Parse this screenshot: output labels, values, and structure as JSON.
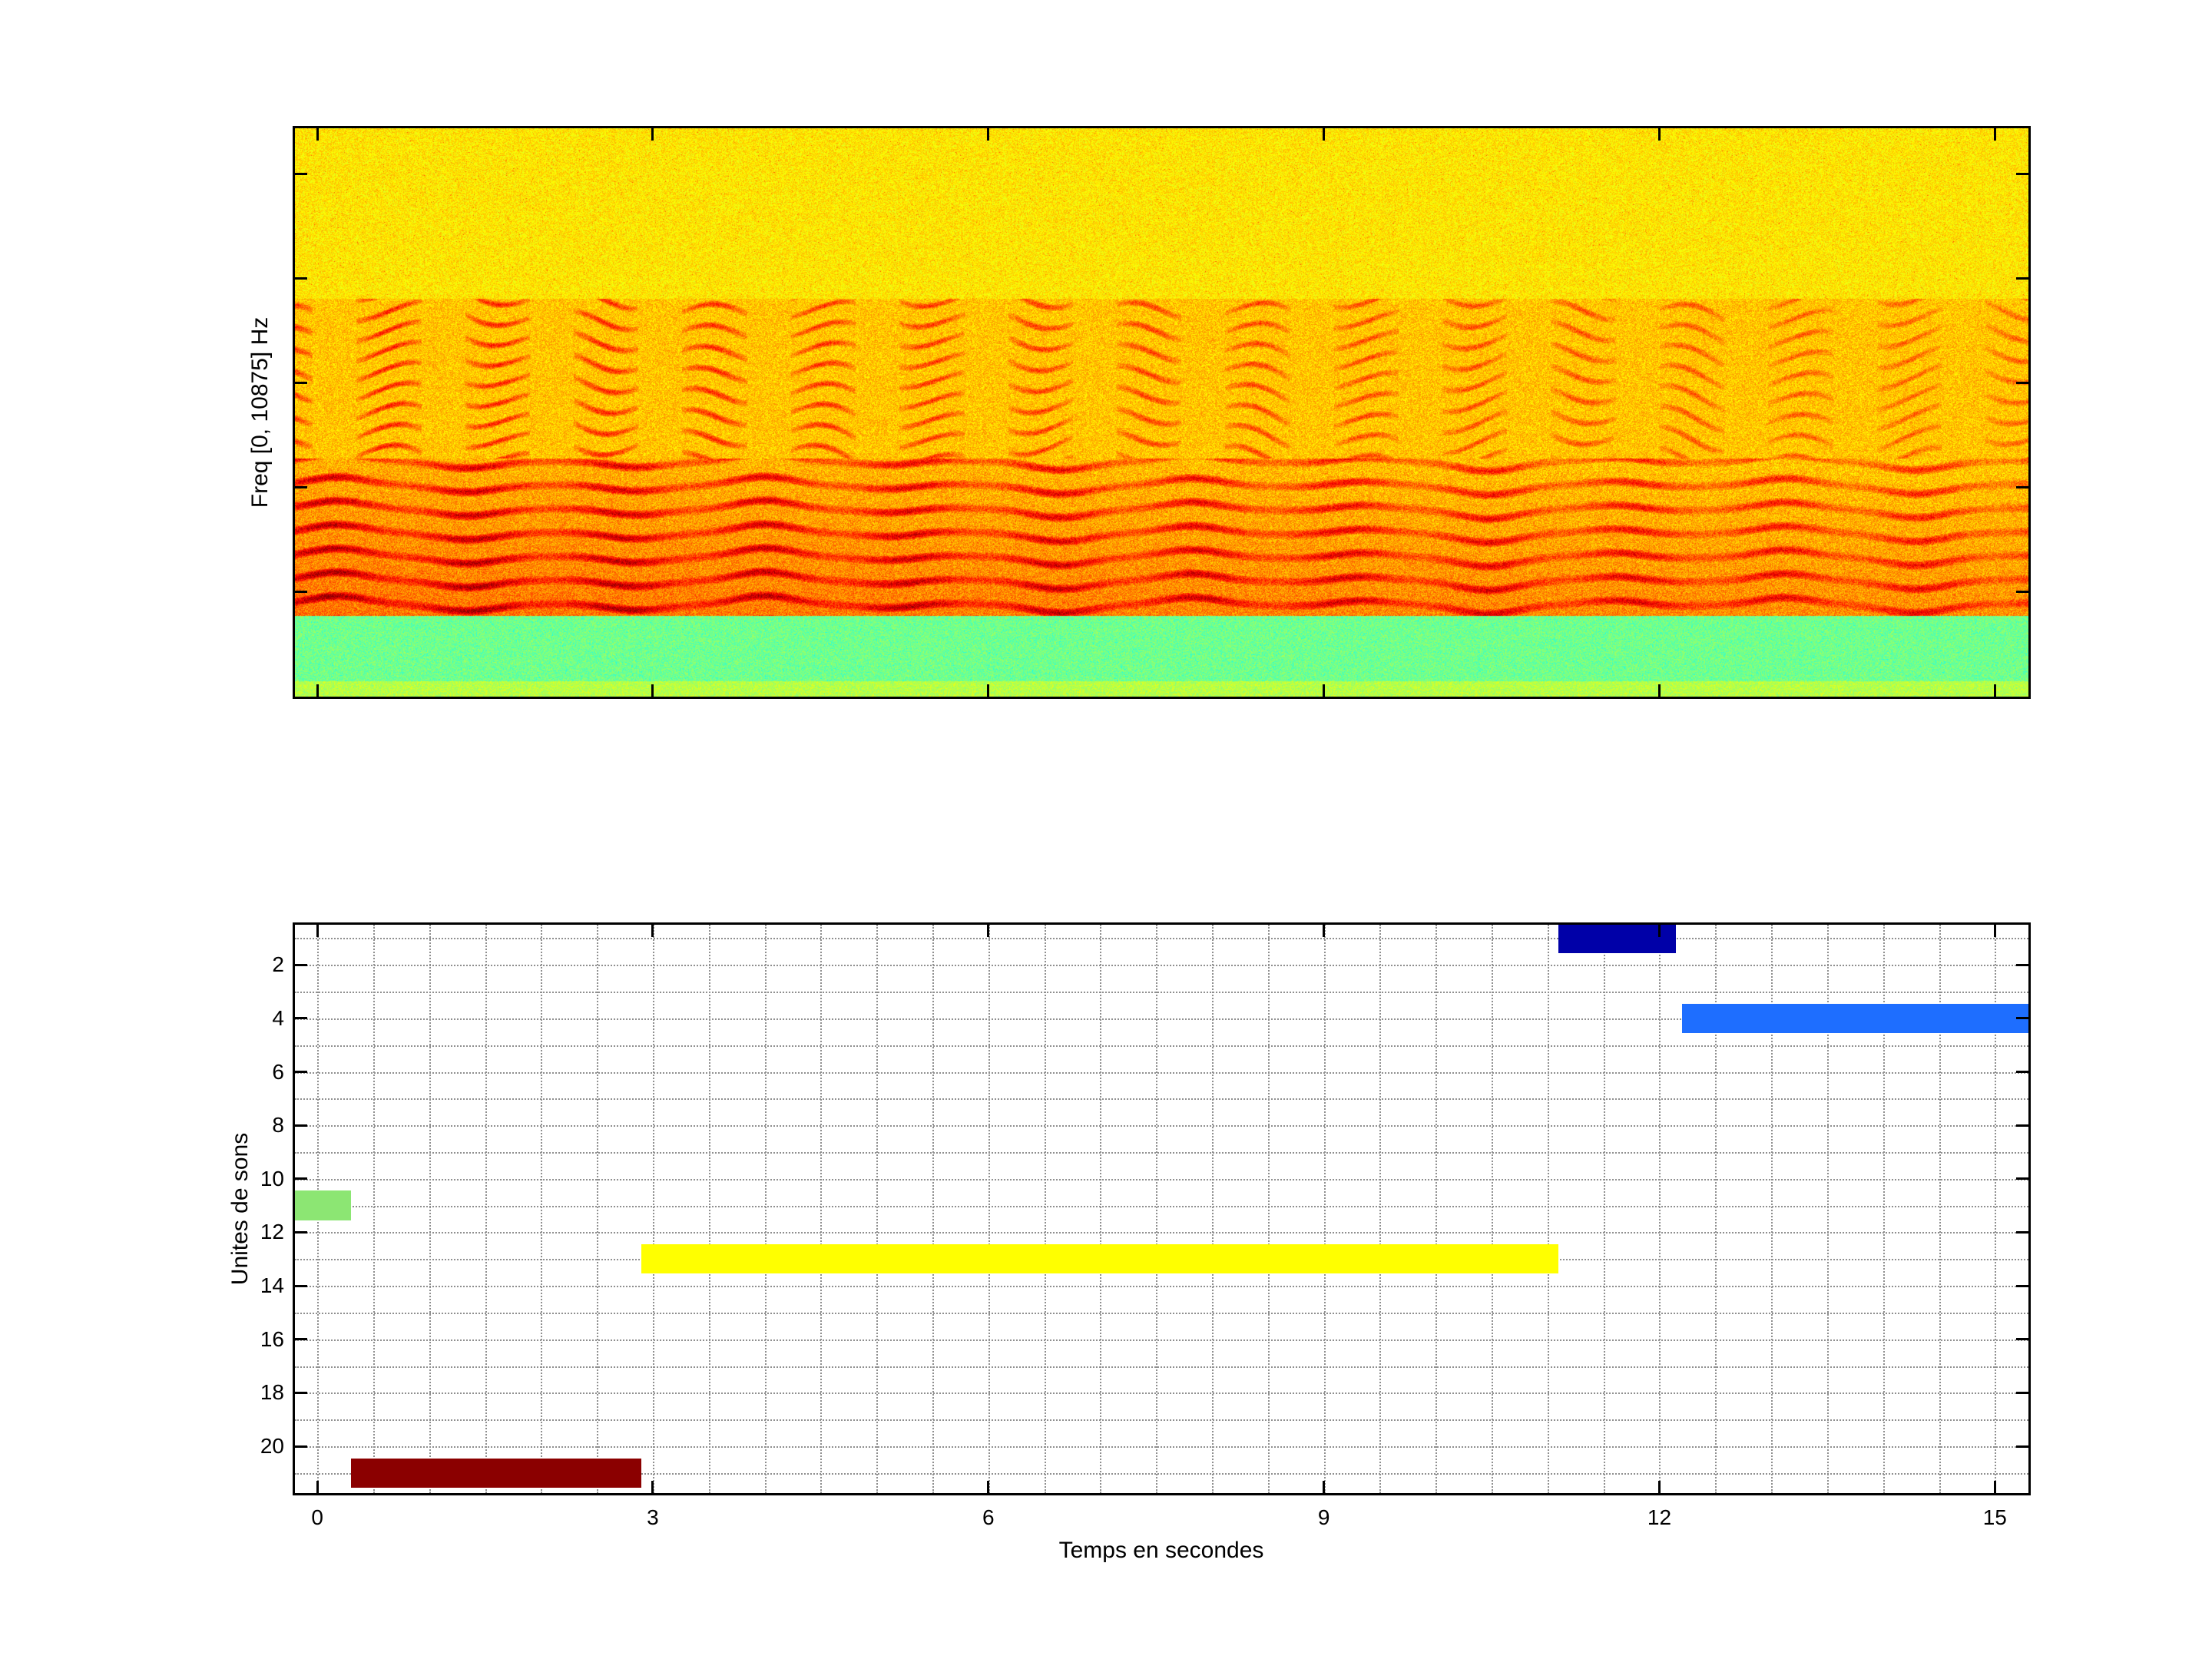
{
  "figure": {
    "background": "#ffffff",
    "axes_border_color": "#000000"
  },
  "chart_data": [
    {
      "type": "heatmap",
      "name": "spectrogram",
      "title": "",
      "xlabel": "",
      "ylabel": "Freq [0, 10875] Hz",
      "colormap": "jet",
      "freq_range_hz": [
        0,
        10875
      ],
      "time_range_s": [
        -0.2,
        15.3
      ],
      "xticks_s": [
        0,
        3,
        6,
        9,
        12,
        15
      ],
      "ytick_freqs_hz": [
        2000,
        4000,
        6000,
        8000,
        10000
      ],
      "regions": [
        {
          "name": "upper-noise",
          "y_from": 0.0,
          "y_to": 0.3,
          "base": 0.648,
          "noise": 0.055
        },
        {
          "name": "mid-harmonics",
          "y_from": 0.3,
          "y_to": 0.58,
          "base": 0.682,
          "noise": 0.062
        },
        {
          "name": "low-harmonics",
          "y_from": 0.58,
          "y_to": 0.858,
          "base": 0.705,
          "noise": 0.07
        },
        {
          "name": "green-band",
          "y_from": 0.858,
          "y_to": 0.972,
          "base": 0.49,
          "noise": 0.05
        },
        {
          "name": "bottom-edge",
          "y_from": 0.972,
          "y_to": 1.0,
          "base": 0.555,
          "noise": 0.05
        }
      ]
    },
    {
      "type": "bar",
      "name": "units_timeline",
      "title": "",
      "xlabel": "Temps en secondes",
      "ylabel": "Unites de sons",
      "xlim": [
        -0.2,
        15.3
      ],
      "ylim": [
        0.5,
        21.75
      ],
      "y_direction": "reverse",
      "xticks": [
        0,
        3,
        6,
        9,
        12,
        15
      ],
      "yticks": [
        2,
        4,
        6,
        8,
        10,
        12,
        14,
        16,
        18,
        20
      ],
      "grid": {
        "x_step": 0.5,
        "y_step": 1,
        "style": "dotted",
        "color": "#8f8f8f"
      },
      "bar_half_height": 0.55,
      "segments": [
        {
          "unit": 1,
          "start": 11.1,
          "end": 12.15,
          "color": "#0000A8"
        },
        {
          "unit": 4,
          "start": 12.2,
          "end": 15.3,
          "color": "#1E6EFF"
        },
        {
          "unit": 11,
          "start": -0.2,
          "end": 0.3,
          "color": "#8CE673"
        },
        {
          "unit": 13,
          "start": 2.9,
          "end": 11.1,
          "color": "#FFFF00"
        },
        {
          "unit": 21,
          "start": 0.3,
          "end": 2.9,
          "color": "#8B0000"
        }
      ]
    }
  ]
}
